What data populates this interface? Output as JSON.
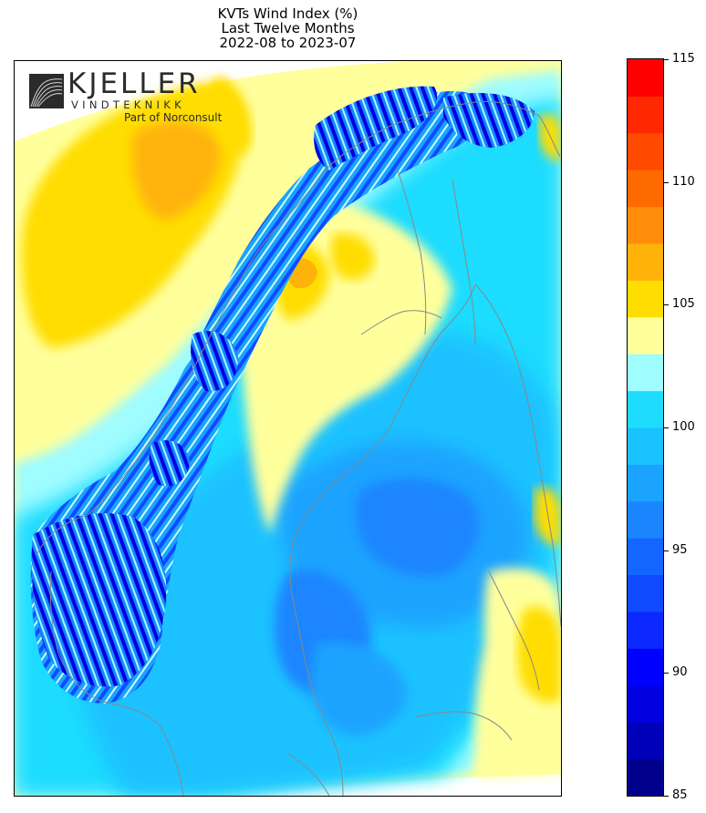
{
  "title": {
    "line1": "KVTs Wind Index (%)",
    "line2": "Last Twelve Months",
    "line3": "2022-08 to 2023-07"
  },
  "logo": {
    "name": "KJELLER",
    "sub": "VINDTEKNIKK",
    "part_of": "Part of Norconsult"
  },
  "colorbar": {
    "min": 85,
    "max": 115,
    "step": 1.5,
    "tick_labels": [
      "85",
      "90",
      "95",
      "100",
      "105",
      "110",
      "115"
    ],
    "colors": [
      "#00008c",
      "#0000b8",
      "#0000e0",
      "#0000ff",
      "#0a28ff",
      "#0f4aff",
      "#1366ff",
      "#1a85ff",
      "#1aa3ff",
      "#1ac2ff",
      "#1fdcff",
      "#9ffcff",
      "#ffff9c",
      "#ffdd00",
      "#ffb30a",
      "#ff8c0a",
      "#ff6a00",
      "#ff4a00",
      "#ff2800",
      "#ff0000",
      "#cc0000",
      "#990000"
    ]
  },
  "map": {
    "ocean_color": "#ffff9c",
    "coast_color": "#888888"
  }
}
